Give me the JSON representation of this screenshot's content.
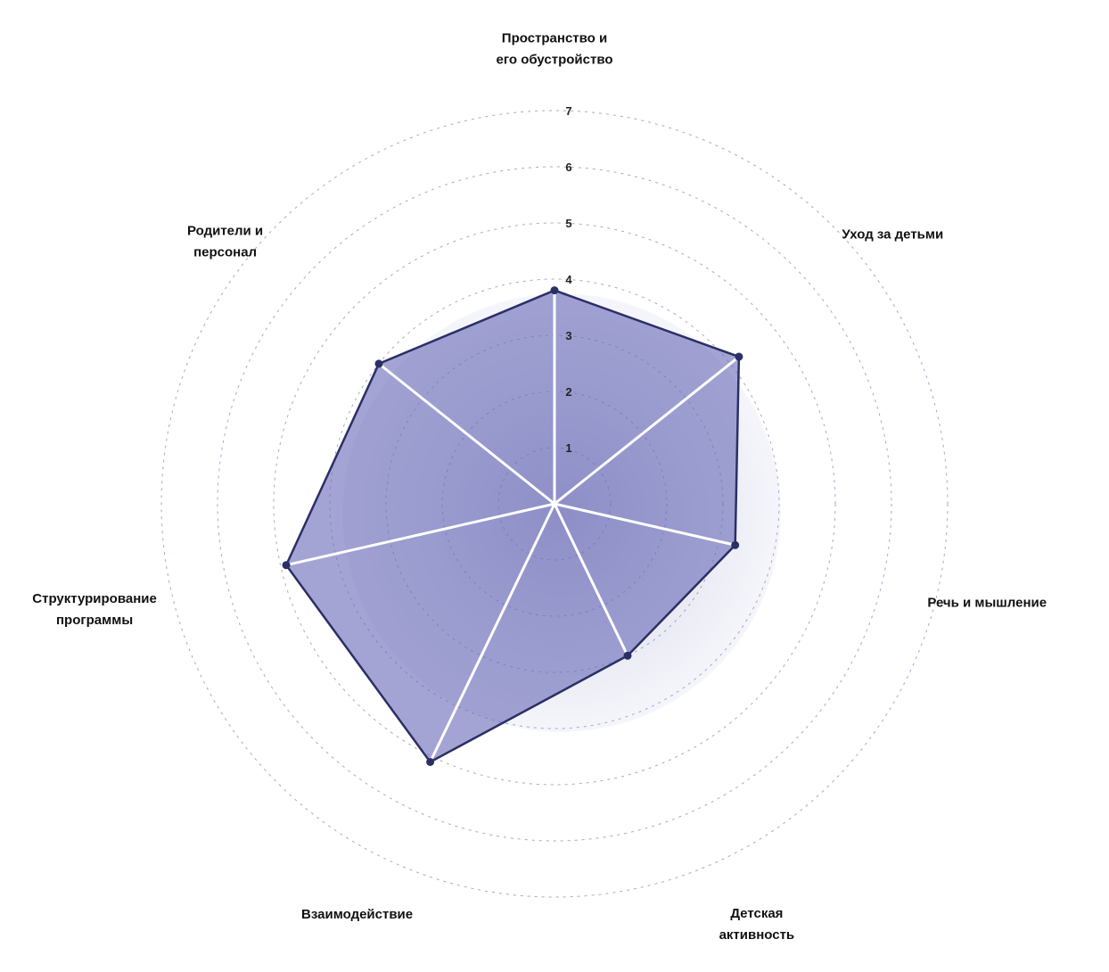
{
  "chart_data": {
    "type": "radar",
    "title": "",
    "axes": [
      [
        "Пространство и",
        "его обустройство"
      ],
      [
        "Уход за детьми"
      ],
      [
        "Речь и мышление"
      ],
      [
        "Детская",
        "активность"
      ],
      [
        "Взаимодействие"
      ],
      [
        "Структурирование",
        "программы"
      ],
      [
        "Родители и",
        "персонал"
      ]
    ],
    "series": [
      {
        "values": [
          3.8,
          4.2,
          3.3,
          3.0,
          5.1,
          4.9,
          4.0
        ]
      }
    ],
    "rlim": [
      0,
      7
    ],
    "ticks": [
      "1",
      "2",
      "3",
      "4",
      "5",
      "6",
      "7"
    ],
    "grid": true,
    "colors": {
      "fill": "#6a6cb8",
      "outline": "#2b2f66",
      "spokes": "#ffffff",
      "grid": "#a9a9c9"
    }
  }
}
